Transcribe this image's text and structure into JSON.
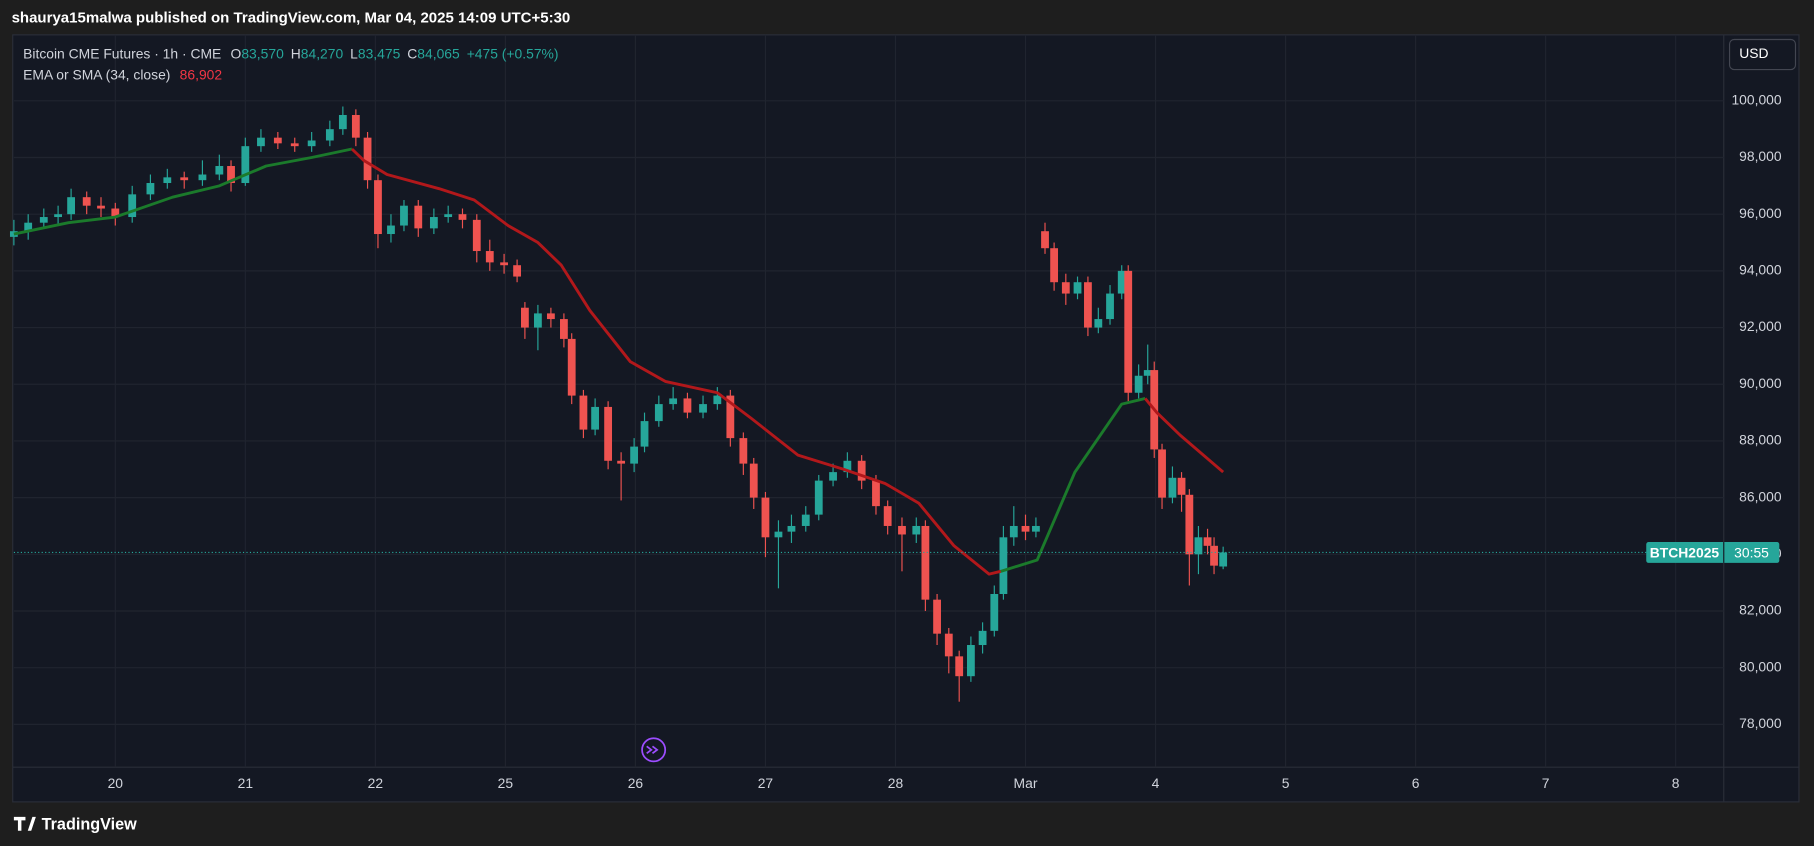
{
  "header": "shaurya15malwa published on TradingView.com, Mar 04, 2025 14:09 UTC+5:30",
  "footer": "TradingView",
  "currency": "USD",
  "chart_data": {
    "type": "candlestick",
    "title": "Bitcoin CME Futures · 1h · CME",
    "ohlc_legend": [
      {
        "key": "O",
        "label": "83,570"
      },
      {
        "key": "H",
        "label": "84,270"
      },
      {
        "key": "L",
        "label": "83,475"
      },
      {
        "key": "C",
        "label": "84,065"
      }
    ],
    "change": "+475 (+0.57%)",
    "up_color": "#26a69a",
    "down_color": "#ef5350",
    "x": [
      -0.78,
      -0.67,
      -0.55,
      -0.44,
      -0.34,
      -0.22,
      -0.11,
      0,
      0.13,
      0.27,
      0.4,
      0.53,
      0.67,
      0.8,
      0.89,
      1.0,
      1.12,
      1.25,
      1.38,
      1.51,
      1.65,
      1.75,
      1.85,
      1.94,
      2.02,
      2.12,
      2.22,
      2.33,
      2.45,
      2.56,
      2.67,
      2.78,
      2.88,
      2.99,
      3.09,
      3.15,
      3.25,
      3.35,
      3.45,
      3.51,
      3.6,
      3.69,
      3.79,
      3.89,
      3.99,
      4.07,
      4.18,
      4.29,
      4.4,
      4.52,
      4.63,
      4.73,
      4.83,
      4.91,
      5.0,
      5.1,
      5.2,
      5.31,
      5.41,
      5.52,
      5.63,
      5.74,
      5.85,
      5.94,
      6.05,
      6.16,
      6.23,
      6.32,
      6.41,
      6.49,
      6.58,
      6.67,
      6.76,
      6.83,
      6.91,
      7.0,
      7.08,
      7.15,
      7.22,
      7.31,
      7.4,
      7.48,
      7.56,
      7.65,
      7.74,
      7.79,
      7.87,
      7.94,
      7.99,
      8.05,
      8.13,
      8.2,
      8.26,
      8.33,
      8.4,
      8.45,
      8.52
    ],
    "open": [
      95200,
      95400,
      95700,
      95900,
      96000,
      96600,
      96300,
      96200,
      95900,
      96700,
      97100,
      97300,
      97200,
      97400,
      97700,
      97100,
      98400,
      98700,
      98500,
      98400,
      98600,
      99000,
      99500,
      98700,
      97200,
      95300,
      95600,
      96300,
      95500,
      95900,
      96000,
      95800,
      94700,
      94300,
      94200,
      92700,
      92000,
      92500,
      92300,
      91600,
      89600,
      88400,
      89200,
      87300,
      87200,
      87800,
      88700,
      89300,
      89500,
      89000,
      89300,
      89600,
      88100,
      87200,
      86000,
      84600,
      84800,
      85000,
      85400,
      86600,
      86900,
      87300,
      86600,
      85700,
      85000,
      84700,
      85000,
      82400,
      81200,
      80400,
      79700,
      80800,
      81300,
      82600,
      84600,
      85000,
      84800,
      95400,
      94800,
      93600,
      93200,
      93600,
      92000,
      92300,
      93200,
      94000,
      89700,
      90300,
      90500,
      87700,
      86000,
      86700,
      86100,
      84000,
      84600,
      84300,
      83570
    ],
    "high": [
      95800,
      96000,
      96200,
      96300,
      96900,
      96800,
      96600,
      96400,
      97000,
      97400,
      97600,
      97500,
      97900,
      98100,
      97900,
      98700,
      99000,
      98900,
      98700,
      98900,
      99300,
      99800,
      99700,
      98900,
      97400,
      96000,
      96500,
      96500,
      96200,
      96300,
      96200,
      96000,
      95100,
      94600,
      94400,
      92900,
      92800,
      92700,
      92500,
      91800,
      89800,
      89500,
      89400,
      87600,
      88100,
      89000,
      89600,
      89900,
      89700,
      89600,
      89900,
      89800,
      88300,
      87400,
      86200,
      85200,
      85400,
      85700,
      86800,
      87200,
      87600,
      87500,
      86800,
      85900,
      85300,
      85300,
      85200,
      82600,
      81400,
      80600,
      81100,
      81600,
      82900,
      85000,
      85700,
      85400,
      85300,
      95700,
      95000,
      93900,
      93800,
      93800,
      92700,
      93500,
      94200,
      94200,
      90700,
      91400,
      90800,
      87900,
      87100,
      86900,
      86300,
      85000,
      84900,
      84600,
      84270
    ],
    "low": [
      94900,
      95100,
      95500,
      95600,
      95800,
      96000,
      95900,
      95600,
      95700,
      96500,
      96900,
      96900,
      97000,
      97200,
      96800,
      97000,
      98200,
      98300,
      98200,
      98200,
      98400,
      98800,
      98400,
      96900,
      94800,
      95000,
      95400,
      95200,
      95300,
      95700,
      95500,
      94300,
      94000,
      93900,
      93600,
      91600,
      91200,
      92000,
      91300,
      89300,
      88100,
      88200,
      87000,
      85900,
      86900,
      87600,
      88500,
      89100,
      88800,
      88800,
      89100,
      87800,
      86800,
      85600,
      83900,
      82800,
      84400,
      84800,
      85200,
      86400,
      86700,
      86300,
      85400,
      84700,
      83400,
      84400,
      82000,
      80800,
      79800,
      78800,
      79500,
      80500,
      81100,
      82400,
      84300,
      84500,
      84600,
      94600,
      93300,
      92800,
      93000,
      91700,
      91800,
      92100,
      93000,
      89400,
      89500,
      90000,
      87400,
      85600,
      85800,
      85500,
      82900,
      83300,
      84000,
      83300,
      83475
    ],
    "close": [
      95400,
      95700,
      95900,
      96000,
      96600,
      96300,
      96200,
      95900,
      96700,
      97100,
      97300,
      97200,
      97400,
      97700,
      97100,
      98400,
      98700,
      98500,
      98400,
      98600,
      99000,
      99500,
      98700,
      97200,
      95300,
      95600,
      96300,
      95500,
      95900,
      96000,
      95800,
      94700,
      94300,
      94200,
      93800,
      92000,
      92500,
      92300,
      91600,
      89600,
      88400,
      89200,
      87300,
      87200,
      87800,
      88700,
      89300,
      89500,
      89000,
      89300,
      89600,
      88100,
      87200,
      86000,
      84600,
      84800,
      85000,
      85400,
      86600,
      86900,
      87300,
      86600,
      85700,
      85000,
      84700,
      85000,
      82400,
      81200,
      80400,
      79700,
      80800,
      81300,
      82600,
      84600,
      85000,
      84800,
      85000,
      94800,
      93600,
      93200,
      93600,
      92000,
      92300,
      93200,
      94000,
      89700,
      90300,
      90500,
      87700,
      86000,
      86700,
      86100,
      84000,
      84600,
      84300,
      83600,
      84065
    ],
    "last_price": {
      "symbol": "BTCH2025",
      "countdown": "30:55",
      "color": "#26a69a"
    },
    "ema": {
      "name": "EMA or SMA (34, close)",
      "last_label": "86,902",
      "label_color": "#f23645",
      "x": [
        -0.78,
        -0.36,
        0,
        0.44,
        0.8,
        1.16,
        1.51,
        1.82,
        1.91,
        2.09,
        2.49,
        2.76,
        3.02,
        3.25,
        3.43,
        3.65,
        3.96,
        4.23,
        4.63,
        4.89,
        5.25,
        5.6,
        5.92,
        6.18,
        6.45,
        6.72,
        6.81,
        7.09,
        7.38,
        7.74,
        7.92,
        8.01,
        8.19,
        8.52
      ],
      "values": [
        95300,
        95700,
        95900,
        96600,
        97000,
        97700,
        98000,
        98300,
        97900,
        97400,
        96900,
        96500,
        95600,
        95000,
        94200,
        92600,
        90800,
        90100,
        89700,
        88800,
        87500,
        87000,
        86500,
        85800,
        84300,
        83300,
        83400,
        83800,
        86900,
        89300,
        89500,
        89000,
        88200,
        86902
      ],
      "colors": [
        "#1b7a2b",
        "#1b7a2b",
        "#1b7a2b",
        "#1b7a2b",
        "#1b7a2b",
        "#1b7a2b",
        "#1b7a2b",
        "#1b7a2b",
        "#b2181b",
        "#b2181b",
        "#b2181b",
        "#b2181b",
        "#b2181b",
        "#b2181b",
        "#b2181b",
        "#b2181b",
        "#b2181b",
        "#b2181b",
        "#b2181b",
        "#b2181b",
        "#b2181b",
        "#b2181b",
        "#b2181b",
        "#b2181b",
        "#b2181b",
        "#b2181b",
        "#b2181b",
        "#1b7a2b",
        "#1b7a2b",
        "#1b7a2b",
        "#1b7a2b",
        "#b2181b",
        "#b2181b",
        "#b2181b"
      ]
    },
    "xlim": [
      -0.78,
      12.37
    ],
    "xticks": [
      {
        "value": 0,
        "label": "20"
      },
      {
        "value": 1,
        "label": "21"
      },
      {
        "value": 2,
        "label": "22"
      },
      {
        "value": 3,
        "label": "25"
      },
      {
        "value": 4,
        "label": "26"
      },
      {
        "value": 5,
        "label": "27"
      },
      {
        "value": 6,
        "label": "28"
      },
      {
        "value": 7,
        "label": "Mar"
      },
      {
        "value": 8,
        "label": "4"
      },
      {
        "value": 9,
        "label": "5"
      },
      {
        "value": 10,
        "label": "6"
      },
      {
        "value": 11,
        "label": "7"
      },
      {
        "value": 12,
        "label": "8"
      }
    ],
    "ylim": [
      76490,
      102327
    ],
    "yticks": [
      {
        "value": 78000,
        "label": "78,000"
      },
      {
        "value": 80000,
        "label": "80,000"
      },
      {
        "value": 82000,
        "label": "82,000"
      },
      {
        "value": 84000,
        "label": "84,000"
      },
      {
        "value": 86000,
        "label": "86,000"
      },
      {
        "value": 88000,
        "label": "88,000"
      },
      {
        "value": 90000,
        "label": "90,000"
      },
      {
        "value": 92000,
        "label": "92,000"
      },
      {
        "value": 94000,
        "label": "94,000"
      },
      {
        "value": 96000,
        "label": "96,000"
      },
      {
        "value": 98000,
        "label": "98,000"
      },
      {
        "value": 100000,
        "label": "100,000"
      }
    ],
    "grid": true
  }
}
